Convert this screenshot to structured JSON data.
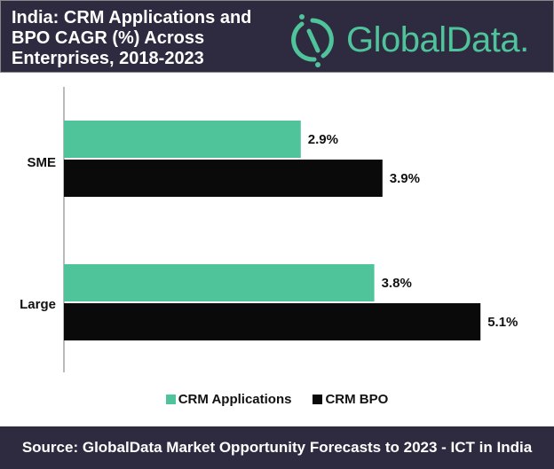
{
  "header": {
    "title": "India: CRM Applications and BPO CAGR (%) Across Enterprises, 2018-2023",
    "logo": "GlobalData."
  },
  "chart_data": {
    "type": "bar",
    "orientation": "horizontal",
    "title": "India: CRM Applications and BPO CAGR (%) Across Enterprises, 2018-2023",
    "categories": [
      "SME",
      "Large"
    ],
    "series": [
      {
        "name": "CRM Applications",
        "values": [
          2.9,
          3.8
        ],
        "labels": [
          "2.9%",
          "3.8%"
        ],
        "color": "#4fc49b"
      },
      {
        "name": "CRM BPO",
        "values": [
          3.9,
          5.1
        ],
        "labels": [
          "3.9%",
          "5.1%"
        ],
        "color": "#0a0a0a"
      }
    ],
    "xlim": [
      0,
      6
    ],
    "grid": false,
    "legend": "bottom"
  },
  "footer": {
    "source": "Source:  GlobalData Market Opportunity Forecasts to 2023 -  ICT in India"
  }
}
